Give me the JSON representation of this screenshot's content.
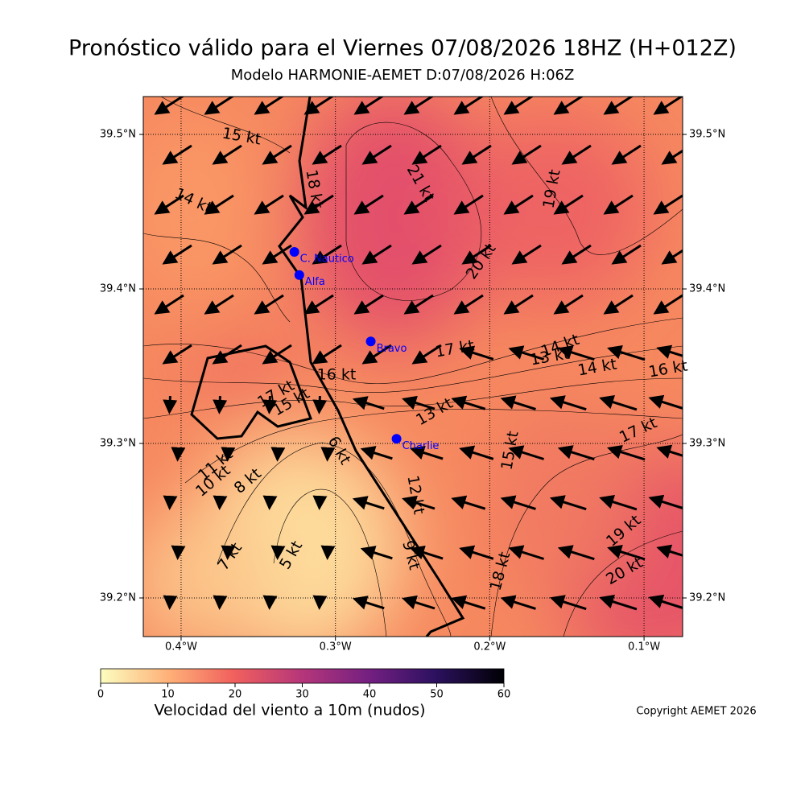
{
  "title": "Pronóstico válido para el Viernes 07/08/2026 18HZ (H+012Z)",
  "subtitle": "Modelo HARMONIE-AEMET D:07/08/2026 H:06Z",
  "map": {
    "lonlim": [
      -0.4245,
      -0.075
    ],
    "latlim": [
      39.175,
      39.5245
    ],
    "lonticks": [
      {
        "value": -0.4,
        "label": "0.4°W"
      },
      {
        "value": -0.3,
        "label": "0.3°W"
      },
      {
        "value": -0.2,
        "label": "0.2°W"
      },
      {
        "value": -0.1,
        "label": "0.1°W"
      }
    ],
    "latticks": [
      {
        "value": 39.2,
        "label": "39.2°N"
      },
      {
        "value": 39.3,
        "label": "39.3°N"
      },
      {
        "value": 39.4,
        "label": "39.4°N"
      },
      {
        "value": 39.5,
        "label": "39.5°N"
      }
    ],
    "stations": [
      {
        "name": "C. Nautico",
        "lon": -0.3266,
        "lat": 39.424
      },
      {
        "name": "Alfa",
        "lon": -0.3234,
        "lat": 39.409
      },
      {
        "name": "Bravo",
        "lon": -0.2771,
        "lat": 39.366
      },
      {
        "name": "Charlie",
        "lon": -0.2604,
        "lat": 39.303
      }
    ],
    "station_color": "#0000ff",
    "contour_labels": [
      "15 kt",
      "14 kt",
      "18 kt",
      "21 kt",
      "19 kt",
      "20 kt",
      "17 kt",
      "14 kt",
      "13 kt",
      "14 kt",
      "16 kt",
      "16 kt",
      "17 kt",
      "15 kt",
      "13 kt",
      "17 kt",
      "6 kt",
      "15 kt",
      "11 kt",
      "10 kt",
      "8 kt",
      "12 kt",
      "9 kt",
      "7 kt",
      "5 kt",
      "19 kt",
      "18 kt",
      "20 kt"
    ]
  },
  "colorbar": {
    "label": "Velocidad del viento a 10m (nudos)",
    "range": [
      0,
      60
    ],
    "ticks": [
      0,
      10,
      20,
      30,
      40,
      50,
      60
    ]
  },
  "copyright": "Copyright AEMET 2026"
}
